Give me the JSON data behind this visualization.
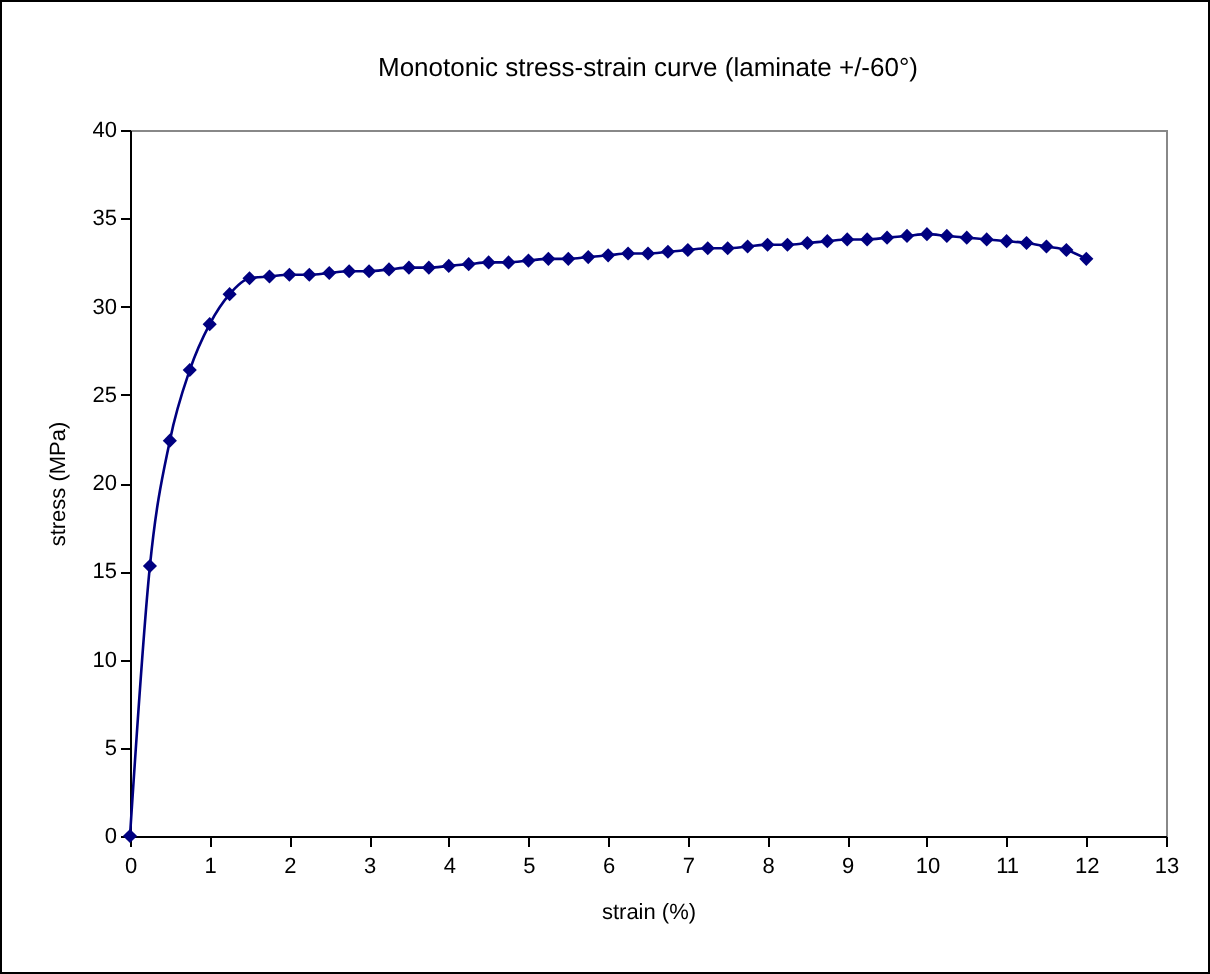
{
  "chart_data": {
    "type": "line",
    "title": "Monotonic stress-strain curve (laminate +/-60°)",
    "xlabel": "strain (%)",
    "ylabel": "stress (MPa)",
    "x": [
      0,
      0.25,
      0.5,
      0.75,
      1,
      1.25,
      1.5,
      1.75,
      2,
      2.25,
      2.5,
      2.75,
      3,
      3.25,
      3.5,
      3.75,
      4,
      4.25,
      4.5,
      4.75,
      5,
      5.25,
      5.5,
      5.75,
      6,
      6.25,
      6.5,
      6.75,
      7,
      7.25,
      7.5,
      7.75,
      8,
      8.25,
      8.5,
      8.75,
      9,
      9.25,
      9.5,
      9.75,
      10,
      10.25,
      10.5,
      10.75,
      11,
      11.25,
      11.5,
      11.75,
      12
    ],
    "series": [
      {
        "color": "#000080",
        "values": [
          0,
          15.3,
          22.4,
          26.4,
          29,
          30.7,
          31.6,
          31.7,
          31.8,
          31.8,
          31.9,
          32,
          32,
          32.1,
          32.2,
          32.2,
          32.3,
          32.4,
          32.5,
          32.5,
          32.6,
          32.7,
          32.7,
          32.8,
          32.9,
          33,
          33,
          33.1,
          33.2,
          33.3,
          33.3,
          33.4,
          33.5,
          33.5,
          33.6,
          33.7,
          33.8,
          33.8,
          33.9,
          34,
          34.1,
          34,
          33.9,
          33.8,
          33.7,
          33.6,
          33.4,
          33.2,
          32.7
        ]
      }
    ],
    "xlim": [
      0,
      13
    ],
    "xticks": [
      0,
      1,
      2,
      3,
      4,
      5,
      6,
      7,
      8,
      9,
      10,
      11,
      12,
      13
    ],
    "ylim": [
      0,
      40
    ],
    "yticks": [
      0,
      5,
      10,
      15,
      20,
      25,
      30,
      35,
      40
    ],
    "grid": false,
    "legend": false,
    "marker": "diamond",
    "line_style": "solid"
  }
}
